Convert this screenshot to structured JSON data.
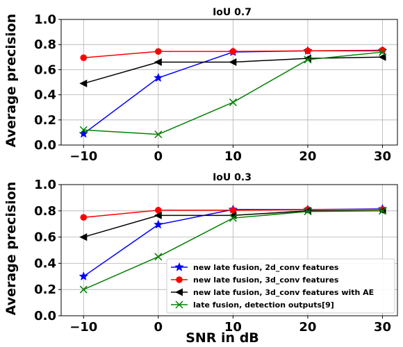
{
  "figure": {
    "ylabel": "Average precision",
    "xlabel": "SNR in dB"
  },
  "chart_data": [
    {
      "type": "line",
      "title": "IoU 0.7",
      "x": [
        -10,
        0,
        10,
        20,
        30
      ],
      "xticks": [
        "−10",
        "0",
        "10",
        "20",
        "30"
      ],
      "yticks": [
        "0.0",
        "0.2",
        "0.4",
        "0.6",
        "0.8",
        "1.0"
      ],
      "xlim": [
        -13,
        32
      ],
      "ylim": [
        0,
        1
      ],
      "grid": true,
      "series": [
        {
          "name": "new late fusion, 2d_conv features",
          "color": "#0000ff",
          "marker": "star",
          "values": [
            0.09,
            0.535,
            0.74,
            0.75,
            0.75
          ]
        },
        {
          "name": "new late fusion, 3d_conv features",
          "color": "#ff0000",
          "marker": "circle",
          "values": [
            0.695,
            0.745,
            0.745,
            0.75,
            0.755
          ]
        },
        {
          "name": "new late fusion, 3d_conv features with AE",
          "color": "#000000",
          "marker": "triangle-left",
          "values": [
            0.49,
            0.66,
            0.66,
            0.69,
            0.7
          ]
        },
        {
          "name": "late fusion, detection outputs[9]",
          "color": "#008000",
          "marker": "x",
          "values": [
            0.12,
            0.085,
            0.34,
            0.68,
            0.74
          ]
        }
      ]
    },
    {
      "type": "line",
      "title": "IoU 0.3",
      "x": [
        -10,
        0,
        10,
        20,
        30
      ],
      "xticks": [
        "−10",
        "0",
        "10",
        "20",
        "30"
      ],
      "yticks": [
        "0.0",
        "0.2",
        "0.4",
        "0.6",
        "0.8",
        "1.0"
      ],
      "xlim": [
        -13,
        32
      ],
      "ylim": [
        0,
        1
      ],
      "grid": true,
      "legend": "lower-right",
      "series": [
        {
          "name": "new late fusion, 2d_conv features",
          "color": "#0000ff",
          "marker": "star",
          "values": [
            0.3,
            0.695,
            0.81,
            0.81,
            0.815
          ]
        },
        {
          "name": "new late fusion, 3d_conv features",
          "color": "#ff0000",
          "marker": "circle",
          "values": [
            0.75,
            0.805,
            0.805,
            0.81,
            0.81
          ]
        },
        {
          "name": "new late fusion, 3d_conv features with AE",
          "color": "#000000",
          "marker": "triangle-left",
          "values": [
            0.6,
            0.765,
            0.765,
            0.8,
            0.8
          ]
        },
        {
          "name": "late fusion, detection outputs[9]",
          "color": "#008000",
          "marker": "x",
          "values": [
            0.2,
            0.45,
            0.745,
            0.795,
            0.8
          ]
        }
      ]
    }
  ]
}
